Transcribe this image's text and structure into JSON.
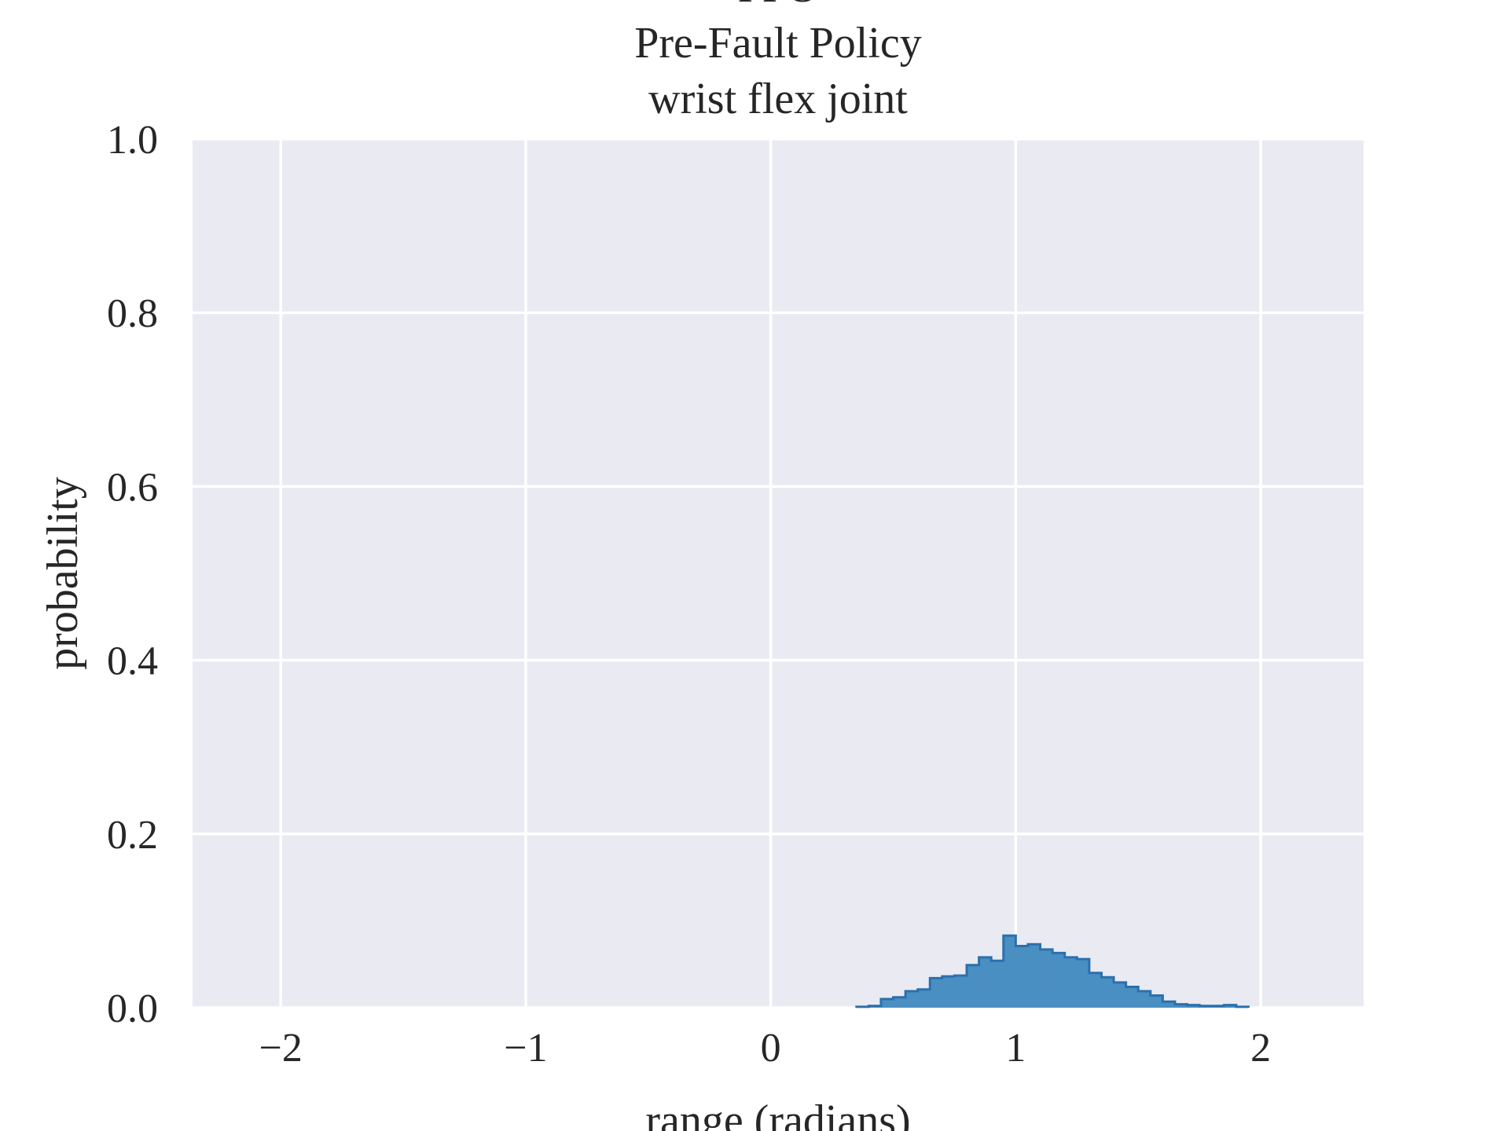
{
  "chart_data": {
    "type": "histogram",
    "title_lines": [
      "PPO",
      "Pre-Fault Policy",
      "wrist flex joint"
    ],
    "xlabel": "range (radians)",
    "ylabel": "probability",
    "xlim": [
      -2.36,
      2.42
    ],
    "ylim": [
      0,
      1.0
    ],
    "xticks": [
      -2,
      -1,
      0,
      1,
      2
    ],
    "xtick_labels": [
      "−2",
      "−1",
      "0",
      "1",
      "2"
    ],
    "yticks": [
      0.0,
      0.2,
      0.4,
      0.6,
      0.8,
      1.0
    ],
    "ytick_labels": [
      "0.0",
      "0.2",
      "0.4",
      "0.6",
      "0.8",
      "1.0"
    ],
    "grid": true,
    "background_color": "#eaeaf2",
    "bar_color": "#4a8fc2",
    "edge_color": "#2a70ad",
    "bin_width": 0.05,
    "series": [
      {
        "bins": [
          {
            "x0": 0.35,
            "p": 0.001
          },
          {
            "x0": 0.4,
            "p": 0.002
          },
          {
            "x0": 0.45,
            "p": 0.01
          },
          {
            "x0": 0.5,
            "p": 0.012
          },
          {
            "x0": 0.55,
            "p": 0.019
          },
          {
            "x0": 0.6,
            "p": 0.021
          },
          {
            "x0": 0.65,
            "p": 0.034
          },
          {
            "x0": 0.7,
            "p": 0.036
          },
          {
            "x0": 0.75,
            "p": 0.037
          },
          {
            "x0": 0.8,
            "p": 0.049
          },
          {
            "x0": 0.85,
            "p": 0.058
          },
          {
            "x0": 0.9,
            "p": 0.054
          },
          {
            "x0": 0.95,
            "p": 0.083
          },
          {
            "x0": 1.0,
            "p": 0.071
          },
          {
            "x0": 1.05,
            "p": 0.073
          },
          {
            "x0": 1.1,
            "p": 0.067
          },
          {
            "x0": 1.15,
            "p": 0.063
          },
          {
            "x0": 1.2,
            "p": 0.058
          },
          {
            "x0": 1.25,
            "p": 0.056
          },
          {
            "x0": 1.3,
            "p": 0.04
          },
          {
            "x0": 1.35,
            "p": 0.035
          },
          {
            "x0": 1.4,
            "p": 0.029
          },
          {
            "x0": 1.45,
            "p": 0.024
          },
          {
            "x0": 1.5,
            "p": 0.019
          },
          {
            "x0": 1.55,
            "p": 0.014
          },
          {
            "x0": 1.6,
            "p": 0.007
          },
          {
            "x0": 1.65,
            "p": 0.004
          },
          {
            "x0": 1.7,
            "p": 0.003
          },
          {
            "x0": 1.75,
            "p": 0.002
          },
          {
            "x0": 1.8,
            "p": 0.002
          },
          {
            "x0": 1.85,
            "p": 0.003
          },
          {
            "x0": 1.9,
            "p": 0.001
          }
        ]
      }
    ]
  }
}
